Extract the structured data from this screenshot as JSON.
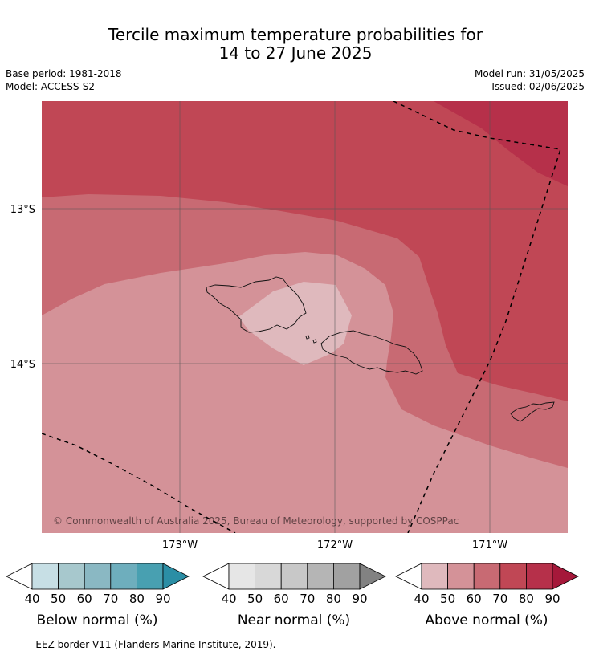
{
  "title": {
    "line1": "Tercile maximum temperature probabilities for",
    "line2": "14 to 27 June 2025"
  },
  "meta": {
    "base_period": "Base period: 1981-2018",
    "model": "Model: ACCESS-S2",
    "model_run": "Model run: 31/05/2025",
    "issued": "Issued: 02/06/2025"
  },
  "map": {
    "lat_labels": [
      "13°S",
      "14°S"
    ],
    "lon_labels": [
      "173°W",
      "172°W",
      "171°W"
    ],
    "copyright": "© Commonwealth of Australia 2025, Bureau of Meteorology, supported by COSPPac",
    "colors": {
      "above_40_50": "#dfb9bd",
      "above_50_60": "#d49298",
      "above_60_70": "#c86a73",
      "above_70_80": "#c04755",
      "above_80_90": "#b6304a",
      "eez_line": "#000000",
      "grid": "#555555"
    }
  },
  "legends": [
    {
      "caption": "Below normal (%)",
      "ticks": [
        "40",
        "50",
        "60",
        "70",
        "80",
        "90"
      ],
      "colors": [
        "#c7dfe5",
        "#a7c8cd",
        "#8ab8c3",
        "#6eaebd",
        "#48a0b1",
        "#2b8ea5"
      ]
    },
    {
      "caption": "Near normal (%)",
      "ticks": [
        "40",
        "50",
        "60",
        "70",
        "80",
        "90"
      ],
      "colors": [
        "#e6e6e6",
        "#d8d8d8",
        "#c8c8c8",
        "#b5b5b5",
        "#a1a1a1",
        "#828282"
      ]
    },
    {
      "caption": "Above normal (%)",
      "ticks": [
        "40",
        "50",
        "60",
        "70",
        "80",
        "90"
      ],
      "colors": [
        "#dfb9bd",
        "#d49298",
        "#c86a73",
        "#c04755",
        "#b6304a",
        "#a5183a"
      ]
    }
  ],
  "footer": "--  --  -- EEZ border V11 (Flanders Marine Institute, 2019)."
}
